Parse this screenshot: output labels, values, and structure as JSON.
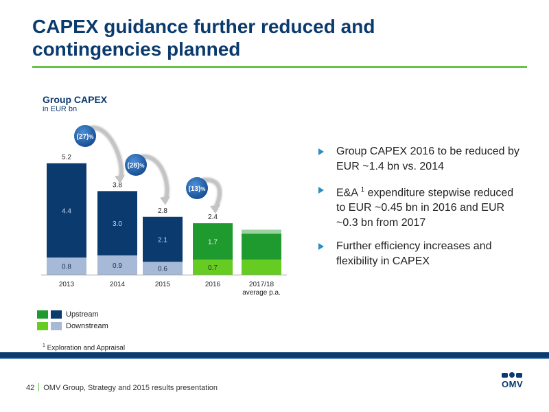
{
  "slide": {
    "title_line1": "CAPEX guidance further reduced and",
    "title_line2": "contingencies planned"
  },
  "bullets": [
    {
      "text": "Group CAPEX 2016 to be reduced by EUR ~1.4 bn vs. 2014"
    },
    {
      "pre": "E&A ",
      "sup": "1",
      "post": " expenditure stepwise reduced to EUR ~0.45 bn in 2016 and EUR ~0.3 bn from 2017"
    },
    {
      "text": "Further efficiency increases and flexibility in CAPEX"
    }
  ],
  "legend": {
    "upstream": "Upstream",
    "downstream": "Downstream"
  },
  "footnote": {
    "sup": "1",
    "text": " Exploration and Appraisal"
  },
  "footer": {
    "page": "42",
    "text": "OMV Group, Strategy and 2015 results presentation"
  },
  "logo": {
    "text": "OMV"
  },
  "colors": {
    "upstream_dark": "#0a3a6e",
    "downstream_dark": "#a6b9d6",
    "upstream_green": "#1f9a2e",
    "downstream_green": "#66cc22",
    "bubble": "#1c62b0"
  },
  "chart_data": {
    "type": "bar",
    "stacked": true,
    "title": "Group CAPEX",
    "subtitle": "in EUR bn",
    "categories": [
      "2013",
      "2014",
      "2015",
      "2016",
      "2017/18 average p.a."
    ],
    "category_lines": [
      [
        "2013"
      ],
      [
        "2014"
      ],
      [
        "2015"
      ],
      [
        "2016"
      ],
      [
        "2017/18",
        "average p.a."
      ]
    ],
    "series": [
      {
        "name": "Downstream",
        "values": [
          0.8,
          0.9,
          0.6,
          0.7,
          null
        ],
        "labels": [
          "0.8",
          "0.9",
          "0.6",
          "0.7",
          ""
        ]
      },
      {
        "name": "Upstream",
        "values": [
          4.4,
          3.0,
          2.1,
          1.7,
          null
        ],
        "labels": [
          "4.4",
          "3.0",
          "2.1",
          "1.7",
          ""
        ]
      }
    ],
    "totals": [
      5.2,
      3.8,
      2.8,
      2.4,
      null
    ],
    "total_labels": [
      "5.2",
      "3.8",
      "2.8",
      "2.4",
      ""
    ],
    "projection_estimate": {
      "downstream": 0.7,
      "upstream": 1.4
    },
    "changes": [
      {
        "label": "(27)",
        "suffix": "%",
        "from": 0,
        "to": 1
      },
      {
        "label": "(28)",
        "suffix": "%",
        "from": 1,
        "to": 2
      },
      {
        "label": "(13)",
        "suffix": "%",
        "from": 2,
        "to": 3
      }
    ],
    "ylim": [
      0,
      5.2
    ],
    "grid": false
  }
}
